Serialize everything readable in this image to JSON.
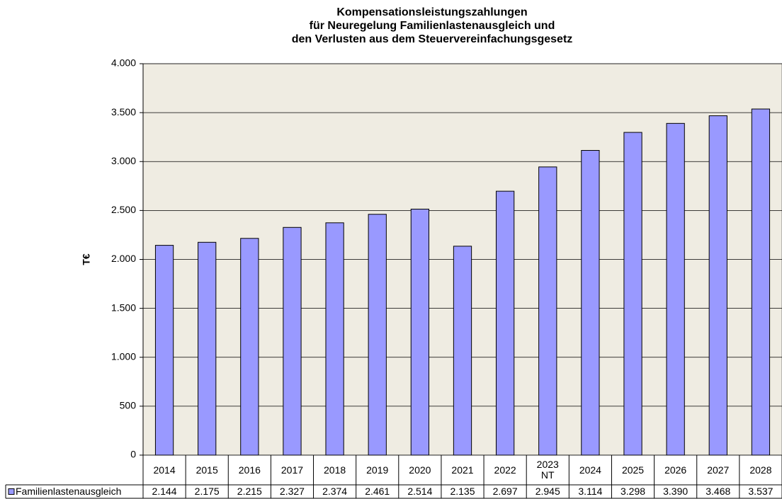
{
  "chart_data": {
    "type": "bar",
    "title": [
      "Kompensationsleistungszahlungen",
      "für  Neuregelung Familienlastenausgleich und",
      "den Verlusten aus dem Steuervereinfachungsgesetz"
    ],
    "y_label": "T€",
    "categories": [
      "2014",
      "2015",
      "2016",
      "2017",
      "2018",
      "2019",
      "2020",
      "2021",
      "2022",
      "2023\nNT",
      "2024",
      "2025",
      "2026",
      "2027",
      "2028"
    ],
    "series": [
      {
        "name": "Familienlastenausgleich",
        "color": "#9999ff",
        "values": [
          2144,
          2175,
          2215,
          2327,
          2374,
          2461,
          2514,
          2135,
          2697,
          2945,
          3114,
          3298,
          3390,
          3468,
          3537
        ],
        "value_labels": [
          "2.144",
          "2.175",
          "2.215",
          "2.327",
          "2.374",
          "2.461",
          "2.514",
          "2.135",
          "2.697",
          "2.945",
          "3.114",
          "3.298",
          "3.390",
          "3.468",
          "3.537"
        ]
      }
    ],
    "ylim": [
      0,
      4000
    ],
    "yticks": [
      0,
      500,
      {
        "value": 1000,
        "label": "1.000"
      },
      {
        "value": 1500,
        "label": "1.500"
      },
      {
        "value": 2000,
        "label": "2.000"
      },
      {
        "value": 2500,
        "label": "2.500"
      },
      {
        "value": 3000,
        "label": "3.000"
      },
      {
        "value": 3500,
        "label": "3.500"
      },
      {
        "value": 4000,
        "label": "4.000"
      }
    ],
    "grid": true,
    "background": "#efece2"
  }
}
